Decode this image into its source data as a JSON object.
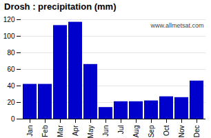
{
  "chart_data": {
    "type": "bar",
    "title": "Drosh : precipitation (mm)",
    "categories": [
      "Jan",
      "Feb",
      "Mar",
      "Apr",
      "May",
      "Jun",
      "Jul",
      "Aug",
      "Sep",
      "Oct",
      "Nov",
      "Dec"
    ],
    "values": [
      42,
      42,
      113,
      117,
      66,
      14,
      21,
      21,
      22,
      27,
      26,
      46
    ],
    "color": "#0000CC",
    "ylim": [
      0,
      120
    ],
    "yticks": [
      0,
      20,
      40,
      60,
      80,
      100,
      120
    ],
    "grid": true,
    "annotations": [
      "www.allmetsat.com"
    ]
  }
}
